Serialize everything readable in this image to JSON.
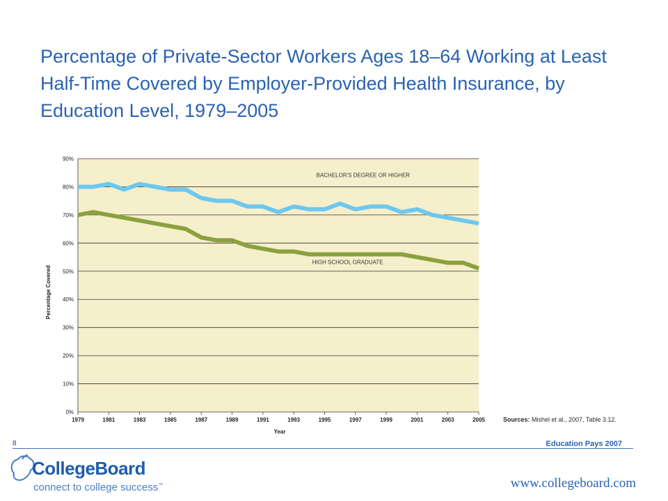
{
  "slide": {
    "title": "Percentage of Private-Sector Workers Ages 18–64 Working at Least Half-Time Covered by Employer-Provided Health Insurance, by Education Level, 1979–2005",
    "sources_label": "Sources:",
    "sources_text": " Mishel et al., 2007, Table 3.12.",
    "page_number": "8",
    "footer_label": "Education Pays 2007",
    "website": "www.collegeboard.com"
  },
  "logo": {
    "name": "CollegeBoard",
    "tagline": "connect to college success",
    "trademark": "™",
    "icon": "acorn-icon",
    "color": "#1f5cab"
  },
  "chart_data": {
    "type": "line",
    "xlabel": "Year",
    "ylabel": "Percentage Covered",
    "ylim": [
      0,
      90
    ],
    "xlim": [
      1979,
      2005
    ],
    "yticks": [
      "0%",
      "10%",
      "20%",
      "30%",
      "40%",
      "50%",
      "60%",
      "70%",
      "80%",
      "90%"
    ],
    "xticks": [
      "1979",
      "1981",
      "1983",
      "1985",
      "1987",
      "1989",
      "1991",
      "1993",
      "1995",
      "1997",
      "1999",
      "2001",
      "2003",
      "2005"
    ],
    "grid": true,
    "background_color": "#f6efcb",
    "x": [
      1979,
      1980,
      1981,
      1982,
      1983,
      1984,
      1985,
      1986,
      1987,
      1988,
      1989,
      1990,
      1991,
      1992,
      1993,
      1994,
      1995,
      1996,
      1997,
      1998,
      1999,
      2000,
      2001,
      2002,
      2003,
      2004,
      2005
    ],
    "series": [
      {
        "name": "BACHELOR'S DEGREE OR HIGHER",
        "color": "#6cc8f0",
        "values": [
          80,
          80,
          81,
          79,
          81,
          80,
          79,
          79,
          76,
          75,
          75,
          73,
          73,
          71,
          73,
          72,
          72,
          74,
          72,
          73,
          73,
          71,
          72,
          70,
          69,
          68,
          67
        ]
      },
      {
        "name": "HIGH SCHOOL GRADUATE",
        "color": "#8aa23e",
        "values": [
          70,
          71,
          70,
          69,
          68,
          67,
          66,
          65,
          62,
          61,
          61,
          59,
          58,
          57,
          57,
          56,
          56,
          56,
          56,
          56,
          56,
          56,
          55,
          54,
          53,
          53,
          51
        ]
      }
    ]
  }
}
